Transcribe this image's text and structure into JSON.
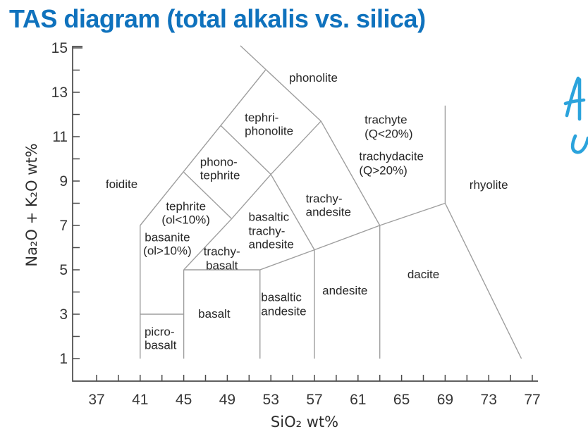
{
  "colors": {
    "title": "#0f72bd",
    "handwriting": "#2ba3dc",
    "boundary_lines": "#9e9e9e",
    "axis": "#4a4a4a",
    "text": "#262626"
  },
  "annotations": {
    "handwriting_glyphs": [
      "A",
      "u"
    ]
  },
  "chart_data": {
    "type": "line",
    "title": "TAS diagram (total alkalis vs. silica)",
    "description": "TAS classification diagram with rock-type fields separated by boundary lines",
    "grid": false,
    "x_axis": {
      "label": "SiO₂ wt%",
      "min": 37,
      "max": 77,
      "minor_tick_step": 2,
      "tick_labels": [
        37,
        41,
        45,
        49,
        53,
        57,
        61,
        65,
        69,
        73,
        77
      ]
    },
    "y_axis": {
      "label": "Na₂O + K₂O wt%",
      "min": 1,
      "max": 15,
      "minor_tick_step": 1,
      "tick_labels": [
        1,
        3,
        5,
        7,
        9,
        11,
        13,
        15
      ]
    },
    "boundaries": [
      {
        "name": "foidite-left",
        "pts": [
          [
            41,
            1
          ],
          [
            41,
            7
          ]
        ]
      },
      {
        "name": "picrobasalt-top",
        "pts": [
          [
            41,
            3
          ],
          [
            45,
            3
          ]
        ]
      },
      {
        "name": "picrobasalt-basalt",
        "pts": [
          [
            45,
            1
          ],
          [
            45,
            5
          ]
        ]
      },
      {
        "name": "basalt-top",
        "pts": [
          [
            45,
            5
          ],
          [
            52,
            5
          ]
        ]
      },
      {
        "name": "basalt-basaltic-andesite",
        "pts": [
          [
            52,
            1
          ],
          [
            52,
            5
          ]
        ]
      },
      {
        "name": "basaltic-andesite-top",
        "pts": [
          [
            52,
            5
          ],
          [
            57,
            5.9
          ]
        ]
      },
      {
        "name": "basaltic-andesite-andesite",
        "pts": [
          [
            57,
            1
          ],
          [
            57,
            5.9
          ]
        ]
      },
      {
        "name": "andesite-top",
        "pts": [
          [
            57,
            5.9
          ],
          [
            63,
            7
          ]
        ]
      },
      {
        "name": "andesite-dacite",
        "pts": [
          [
            63,
            1
          ],
          [
            63,
            7
          ]
        ]
      },
      {
        "name": "dacite-top",
        "pts": [
          [
            63,
            7
          ],
          [
            69,
            8
          ]
        ]
      },
      {
        "name": "dacite-rhyolite",
        "pts": [
          [
            69,
            8
          ],
          [
            76,
            1
          ]
        ]
      },
      {
        "name": "trachydacite-rhyolite",
        "pts": [
          [
            69,
            8
          ],
          [
            69,
            12.4
          ]
        ]
      },
      {
        "name": "foidite-diagonal",
        "pts": [
          [
            41,
            7
          ],
          [
            52.5,
            14
          ]
        ]
      },
      {
        "name": "phonolite-left",
        "pts": [
          [
            50.2,
            15.1
          ],
          [
            57.6,
            11.7
          ]
        ]
      },
      {
        "name": "tephrite-phonotephrite",
        "pts": [
          [
            45,
            9.4
          ],
          [
            49.4,
            7.3
          ]
        ]
      },
      {
        "name": "tephrite-trachybasalt",
        "pts": [
          [
            45,
            5
          ],
          [
            49.4,
            7.3
          ]
        ]
      },
      {
        "name": "phonotephrite-basaltic-trachyandesite",
        "pts": [
          [
            49.4,
            7.3
          ],
          [
            53,
            9.3
          ]
        ]
      },
      {
        "name": "phonotephrite-tephriphonolite",
        "pts": [
          [
            48.4,
            11.5
          ],
          [
            53,
            9.3
          ]
        ]
      },
      {
        "name": "tephriphonolite-trachyandesite",
        "pts": [
          [
            53,
            9.3
          ],
          [
            57.6,
            11.7
          ]
        ]
      },
      {
        "name": "basaltic-trachyandesite-trachyandesite",
        "pts": [
          [
            53,
            9.3
          ],
          [
            57,
            5.9
          ]
        ]
      },
      {
        "name": "trachyandesite-trachyte",
        "pts": [
          [
            57.6,
            11.7
          ],
          [
            63,
            7
          ]
        ]
      }
    ],
    "regions": [
      {
        "name": "foidite",
        "label": "foidite",
        "x": 39.3,
        "y": 8.85,
        "align": "center"
      },
      {
        "name": "phonolite",
        "label": "phonolite",
        "x": 56.9,
        "y": 13.65,
        "align": "center"
      },
      {
        "name": "tephri-phonolite",
        "label": "tephri-\nphonolite",
        "x": 50.6,
        "y": 11.55,
        "align": "left"
      },
      {
        "name": "phono-tephrite",
        "label": "phono-\ntephrite",
        "x": 46.5,
        "y": 9.55,
        "align": "left"
      },
      {
        "name": "trachyte",
        "label": "trachyte\n(Q<20%)",
        "x": 61.6,
        "y": 11.45,
        "align": "left"
      },
      {
        "name": "trachydacite",
        "label": "trachydacite\n(Q>20%)",
        "x": 61.1,
        "y": 9.8,
        "align": "left"
      },
      {
        "name": "rhyolite",
        "label": "rhyolite",
        "x": 73.0,
        "y": 8.8,
        "align": "center"
      },
      {
        "name": "tephrite",
        "label": "tephrite\n(ol<10%)",
        "x": 45.2,
        "y": 7.55,
        "align": "center"
      },
      {
        "name": "basanite",
        "label": "basanite\n(ol>10%)",
        "x": 43.5,
        "y": 6.15,
        "align": "center"
      },
      {
        "name": "trachy-basalt",
        "label": "trachy-\nbasalt",
        "x": 48.5,
        "y": 5.5,
        "align": "center"
      },
      {
        "name": "basaltic-trachy-andesite",
        "label": "basaltic\ntrachy-\nandesite",
        "x": 50.95,
        "y": 6.75,
        "align": "left"
      },
      {
        "name": "trachy-andesite",
        "label": "trachy-\nandesite",
        "x": 56.2,
        "y": 7.9,
        "align": "left"
      },
      {
        "name": "basaltic-andesite",
        "label": "basaltic\nandesite",
        "x": 52.1,
        "y": 3.45,
        "align": "left"
      },
      {
        "name": "andesite",
        "label": "andesite",
        "x": 59.8,
        "y": 4.05,
        "align": "center"
      },
      {
        "name": "dacite",
        "label": "dacite",
        "x": 67.0,
        "y": 4.78,
        "align": "center"
      },
      {
        "name": "basalt",
        "label": "basalt",
        "x": 47.8,
        "y": 3.0,
        "align": "center"
      },
      {
        "name": "picro-basalt",
        "label": "picro-\nbasalt",
        "x": 41.4,
        "y": 1.9,
        "align": "left"
      }
    ]
  }
}
